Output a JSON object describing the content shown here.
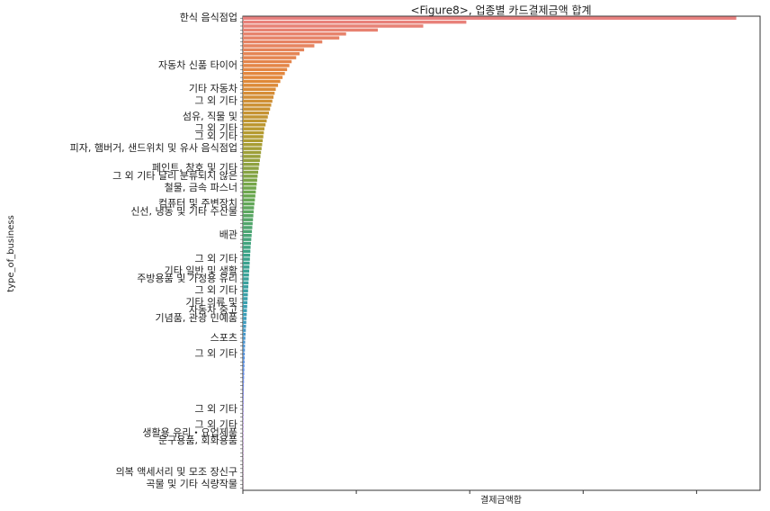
{
  "chart_data": {
    "type": "barh",
    "title": "<Figure8>, 업종별 카드결제금액 합계",
    "xlabel": "결제금액합",
    "ylabel": "type_of_business",
    "categories": [
      "한식 음식점업",
      null,
      null,
      null,
      null,
      null,
      null,
      null,
      null,
      null,
      null,
      null,
      "자동차 신품 타이어",
      null,
      null,
      null,
      null,
      null,
      "기타 자동차",
      null,
      null,
      "그 외 기타",
      null,
      null,
      null,
      "섬유, 직물 및",
      null,
      null,
      "그 외 기타",
      null,
      "그 외 기타",
      null,
      null,
      "피자, 햄버거, 샌드위치 및 유사 음식점업",
      null,
      null,
      null,
      null,
      "페인트, 창호 및 기타",
      null,
      "그 외 기타 달리 분류되지 않은",
      null,
      null,
      "철물, 금속 파스너",
      null,
      null,
      null,
      "컴퓨터 및 주변장치",
      null,
      "신선, 냉동 및 기타 수산물",
      null,
      null,
      null,
      null,
      null,
      "배관",
      null,
      null,
      null,
      null,
      null,
      "그 외 기타",
      null,
      null,
      "기타 일반 및 생활",
      null,
      "주방용품 및 가정용 유리",
      null,
      null,
      "그 외 기타",
      null,
      null,
      "기타 의류 및",
      null,
      "자동차 중고",
      null,
      "기념품, 관광 민예품",
      null,
      null,
      null,
      null,
      "스포츠",
      null,
      null,
      null,
      "그 외 기타",
      null,
      null,
      null,
      null,
      null,
      null,
      null,
      null,
      null,
      null,
      null,
      null,
      null,
      "그 외 기타",
      null,
      null,
      null,
      "그 외 기타",
      null,
      "생활용 유리・요업제품",
      null,
      "문구용품, 회화용품",
      null,
      null,
      null,
      null,
      null,
      null,
      null,
      "의복 액세서리 및 모조 장신구",
      null,
      null,
      "곡물 및 기타 식량작물",
      null
    ],
    "values": [
      4.35,
      1.97,
      1.59,
      1.19,
      0.91,
      0.85,
      0.7,
      0.63,
      0.54,
      0.5,
      0.47,
      0.43,
      0.41,
      0.39,
      0.37,
      0.35,
      0.33,
      0.31,
      0.29,
      0.28,
      0.27,
      0.26,
      0.25,
      0.24,
      0.23,
      0.22,
      0.21,
      0.2,
      0.19,
      0.185,
      0.18,
      0.175,
      0.17,
      0.165,
      0.16,
      0.155,
      0.15,
      0.145,
      0.14,
      0.135,
      0.13,
      0.126,
      0.122,
      0.118,
      0.114,
      0.11,
      0.106,
      0.102,
      0.098,
      0.095,
      0.092,
      0.089,
      0.086,
      0.083,
      0.08,
      0.077,
      0.074,
      0.071,
      0.068,
      0.066,
      0.064,
      0.062,
      0.06,
      0.058,
      0.056,
      0.054,
      0.052,
      0.05,
      0.048,
      0.046,
      0.044,
      0.042,
      0.04,
      0.038,
      0.036,
      0.034,
      0.032,
      0.03,
      0.028,
      0.026,
      0.024,
      0.022,
      0.02,
      0.019,
      0.018,
      0.017,
      0.016,
      0.015,
      0.014,
      0.013,
      0.012,
      0.011,
      0.01,
      0.009,
      0.008,
      0.0075,
      0.007,
      0.0065,
      0.006,
      0.0055,
      0.005,
      0.0048,
      0.0046,
      0.0044,
      0.0042,
      0.004,
      0.0038,
      0.0036,
      0.0034,
      0.0032,
      0.003,
      0.0028,
      0.0026,
      0.0024,
      0.0022,
      0.002,
      0.0018,
      0.0016,
      0.0014,
      0.0012
    ],
    "palette": [
      "#e8817f",
      "#e3873a",
      "#b39b2f",
      "#6aa84f",
      "#3aa387",
      "#3a9fb5",
      "#5d8ce8",
      "#b07fe8",
      "#e07bcf"
    ],
    "xlim": [
      0,
      4.56
    ],
    "xticks": [
      0,
      1,
      2,
      3,
      4
    ],
    "grid": false
  }
}
